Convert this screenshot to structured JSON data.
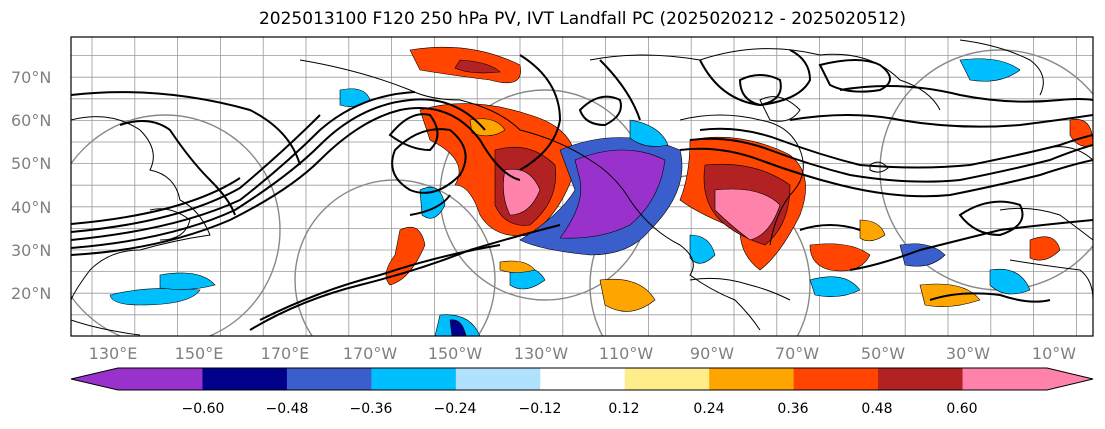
{
  "title": "2025013100 F120 250 hPa PV, IVT Landfall PC (2025020212 - 2025020512)",
  "lat_labels": [
    "70°N",
    "60°N",
    "50°N",
    "40°N",
    "30°N",
    "20°N"
  ],
  "lon_labels": [
    "130°E",
    "150°E",
    "170°E",
    "170°W",
    "150°W",
    "130°W",
    "110°W",
    "90°W",
    "70°W",
    "50°W",
    "30°W",
    "10°W"
  ],
  "colorbar": {
    "ticks": [
      "−0.60",
      "−0.48",
      "−0.36",
      "−0.24",
      "−0.12",
      "0.12",
      "0.24",
      "0.36",
      "0.48",
      "0.60"
    ],
    "colors": [
      "#9932cc",
      "#00008b",
      "#3a5fcd",
      "#00bfff",
      "#b0e2ff",
      "#ffffff",
      "#ffec8b",
      "#ffa500",
      "#ff4500",
      "#b22222",
      "#ff82ab"
    ]
  }
}
